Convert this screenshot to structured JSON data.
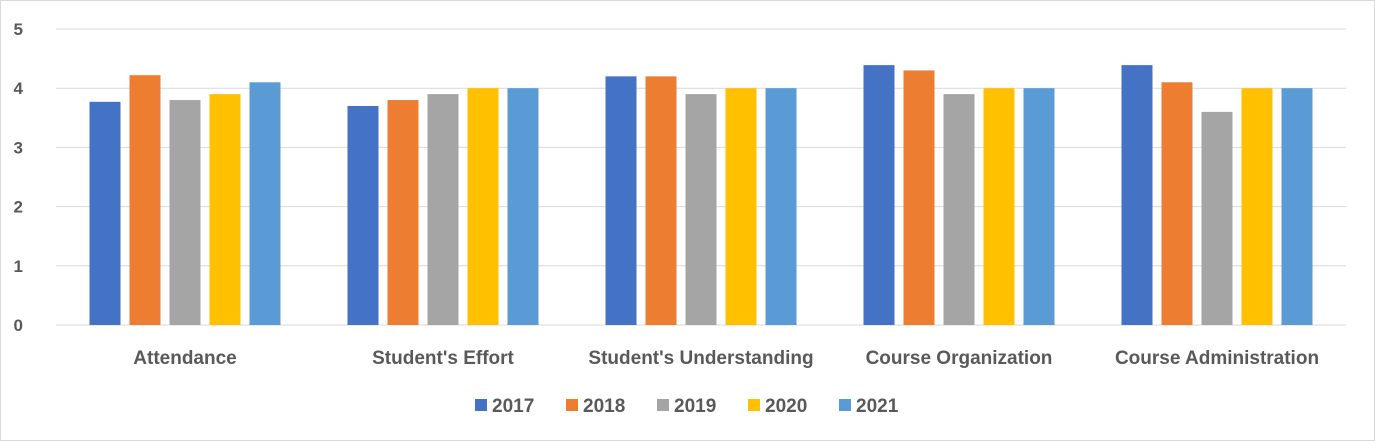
{
  "chart_data": {
    "type": "bar",
    "categories": [
      "Attendance",
      "Student's Effort",
      "Student's Understanding",
      "Course Organization",
      "Course Administration"
    ],
    "series": [
      {
        "name": "2017",
        "color": "#4472c4",
        "values": [
          3.77,
          3.7,
          4.2,
          4.39,
          4.39
        ]
      },
      {
        "name": "2018",
        "color": "#ed7d31",
        "values": [
          4.22,
          3.8,
          4.2,
          4.3,
          4.1
        ]
      },
      {
        "name": "2019",
        "color": "#a5a5a5",
        "values": [
          3.8,
          3.9,
          3.9,
          3.9,
          3.6
        ]
      },
      {
        "name": "2020",
        "color": "#ffc000",
        "values": [
          3.9,
          4.0,
          4.0,
          4.0,
          4.0
        ]
      },
      {
        "name": "2021",
        "color": "#5b9bd5",
        "values": [
          4.1,
          4.0,
          4.0,
          4.0,
          4.0
        ]
      }
    ],
    "yticks": [
      "0",
      "1",
      "2",
      "3",
      "4",
      "5"
    ],
    "ylim": [
      0,
      5
    ],
    "title": "",
    "xlabel": "",
    "ylabel": "",
    "grid": true,
    "legend_position": "bottom"
  }
}
